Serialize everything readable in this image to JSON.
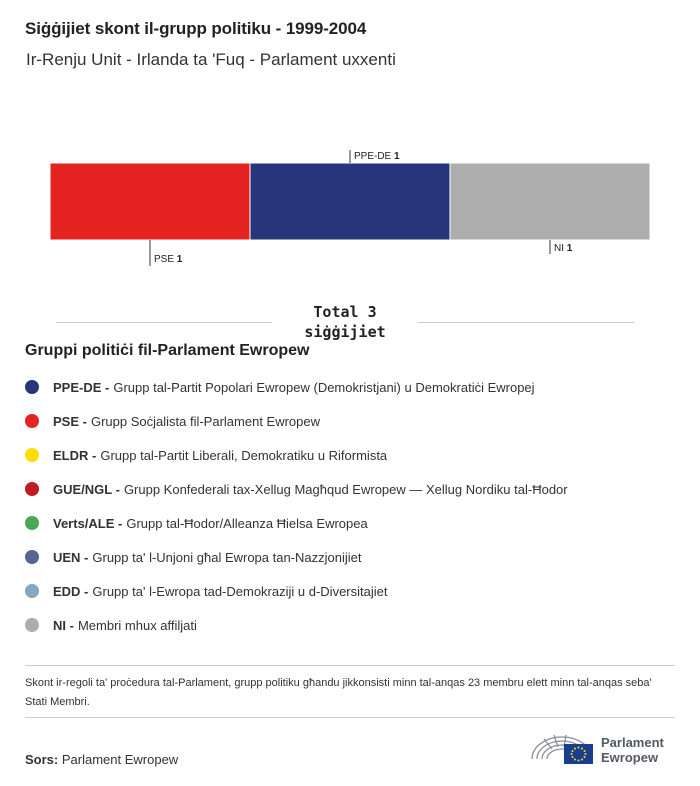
{
  "title": "Siġġijiet skont il-grupp politiku - 1999-2004",
  "subtitle": "Ir-Renju Unit - Irlanda ta 'Fuq - Parlament uxxenti",
  "chart_data": {
    "type": "bar",
    "stacked": true,
    "orientation": "horizontal",
    "categories": [
      "PSE",
      "PPE-DE",
      "NI"
    ],
    "values": [
      1,
      1,
      1
    ],
    "colors": [
      "#e52421",
      "#27367a",
      "#adadad"
    ],
    "label_positions": [
      "below",
      "above",
      "below"
    ]
  },
  "total": {
    "line1": "Total 3",
    "line2": "siġġijiet"
  },
  "legend": {
    "title": "Gruppi politiċi fil-Parlament Ewropew",
    "items": [
      {
        "abbr": "PPE-DE -",
        "desc": "Grupp tal-Partit Popolari Ewropew (Demokristjani) u Demokratiċi Ewropej",
        "color": "#27367a"
      },
      {
        "abbr": "PSE -",
        "desc": "Grupp Soċjalista fil-Parlament Ewropew",
        "color": "#e52421"
      },
      {
        "abbr": "ELDR -",
        "desc": "Grupp tal-Partit Liberali, Demokratiku u Riformista",
        "color": "#ffde00"
      },
      {
        "abbr": "GUE/NGL -",
        "desc": "Grupp Konfederali tax-Xellug Magħqud Ewropew — Xellug Nordiku tal-Ħodor",
        "color": "#c01c24"
      },
      {
        "abbr": "Verts/ALE -",
        "desc": "Grupp tal-Ħodor/Alleanza Ħielsa Ewropea",
        "color": "#48a752"
      },
      {
        "abbr": "UEN -",
        "desc": "Grupp ta' l-Unjoni għal Ewropa tan-Nazzjonijiet",
        "color": "#566593"
      },
      {
        "abbr": "EDD -",
        "desc": "Grupp ta' l-Ewropa tad-Demokraziji u d-Diversitajiet",
        "color": "#84a8c1"
      },
      {
        "abbr": "NI -",
        "desc": "Membri mhux affiljati",
        "color": "#adadad"
      }
    ]
  },
  "note": "Skont ir-regoli ta' proċedura tal-Parlament, grupp politiku għandu jikkonsisti minn tal-anqas 23 membru elett minn tal-anqas seba' Stati Membri.",
  "source": {
    "label": "Sors:",
    "value": "Parlament Ewropew"
  },
  "logo": {
    "line1": "Parlament",
    "line2": "Ewropew"
  }
}
